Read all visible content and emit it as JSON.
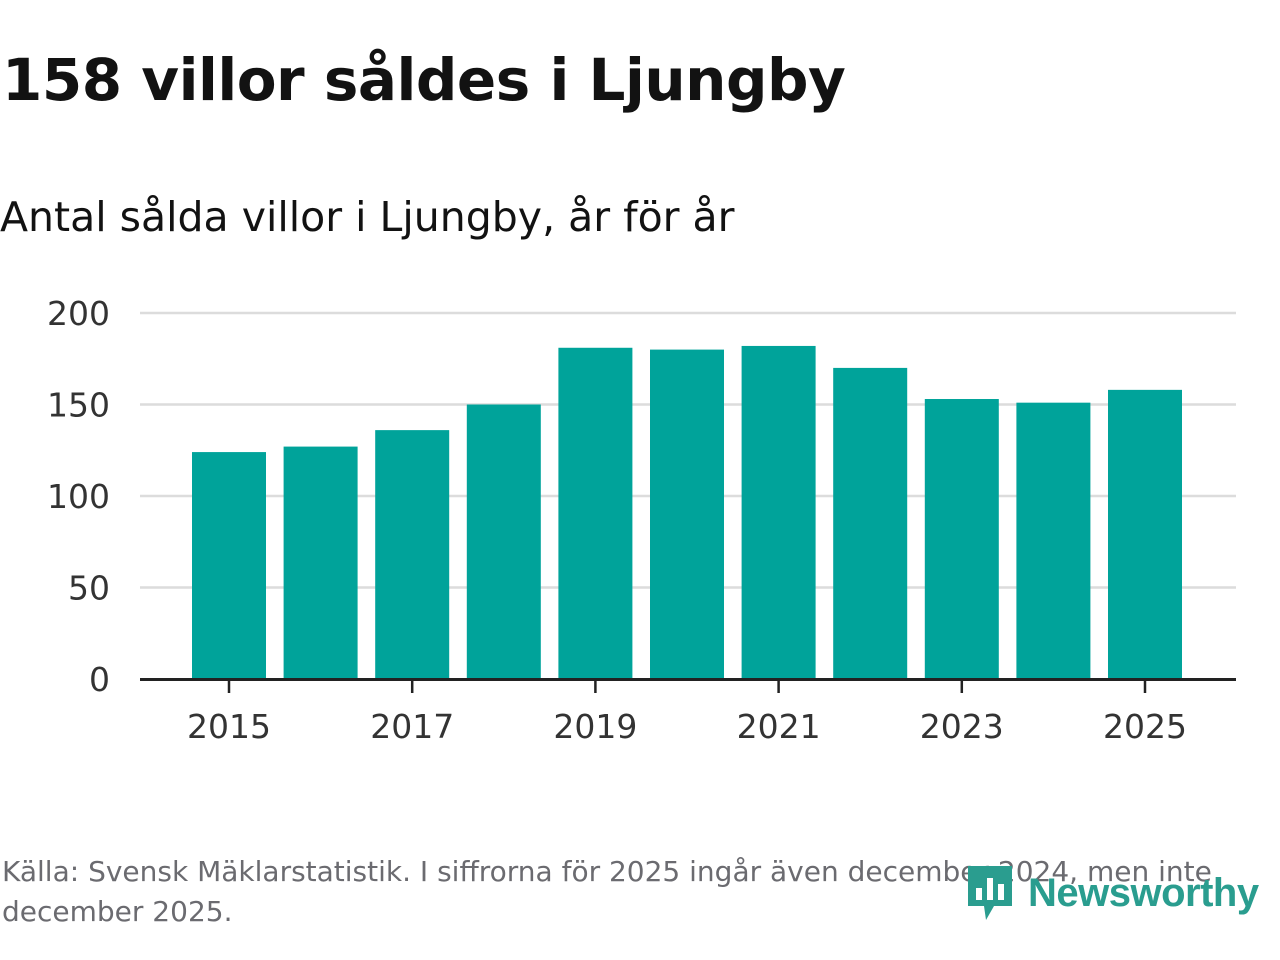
{
  "header": {
    "title": "158 villor såldes i Ljungby",
    "subtitle": "Antal sålda villor i Ljungby, år för år"
  },
  "chart_data": {
    "type": "bar",
    "title": "158 villor såldes i Ljungby",
    "subtitle": "Antal sålda villor i Ljungby, år för år",
    "categories": [
      "2015",
      "2016",
      "2017",
      "2018",
      "2019",
      "2020",
      "2021",
      "2022",
      "2023",
      "2024",
      "2025"
    ],
    "values": [
      124,
      127,
      136,
      150,
      181,
      180,
      182,
      170,
      153,
      151,
      158
    ],
    "x_tick_labels": [
      "2015",
      "2017",
      "2019",
      "2021",
      "2023",
      "2025"
    ],
    "y_ticks": [
      0,
      50,
      100,
      150,
      200
    ],
    "ylim": [
      0,
      200
    ],
    "xlabel": "",
    "ylabel": "",
    "grid": true,
    "bar_color": "#00a39a"
  },
  "footer": {
    "source": "Källa: Svensk Mäklarstatistik. I siffrorna för 2025 ingår även december 2024, men inte december 2025."
  },
  "brand": {
    "name": "Newsworthy",
    "color": "#2a9d8f"
  }
}
